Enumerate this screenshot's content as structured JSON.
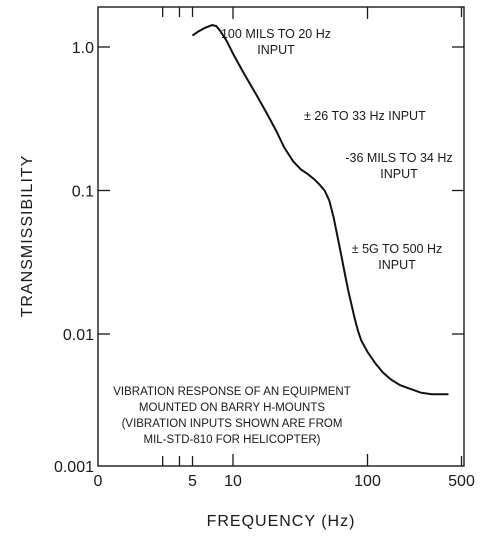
{
  "chart_data": {
    "type": "line",
    "x_scale": "log",
    "y_scale": "log",
    "xlabel": "FREQUENCY (Hz)",
    "ylabel": "TRANSMISSIBILITY",
    "xlim": [
      2,
      500
    ],
    "ylim": [
      0.001,
      2
    ],
    "x_tick_labels": [
      "0",
      "5",
      "10",
      "100",
      "500"
    ],
    "y_tick_labels": [
      "1.0",
      "0.1",
      "0.01",
      "0.001"
    ],
    "grid": false,
    "series": [
      {
        "x": [
          5,
          5.5,
          6.2,
          7,
          7.5,
          8,
          9,
          10,
          12,
          15,
          18,
          21,
          24,
          28,
          32,
          36,
          40,
          44,
          48,
          52,
          56,
          60,
          64,
          68,
          72,
          76,
          80,
          85,
          90,
          100,
          115,
          130,
          150,
          175,
          200,
          250,
          300,
          350,
          400
        ],
        "y": [
          1.2,
          1.28,
          1.36,
          1.42,
          1.4,
          1.3,
          1.1,
          0.9,
          0.66,
          0.46,
          0.34,
          0.26,
          0.2,
          0.16,
          0.14,
          0.13,
          0.12,
          0.11,
          0.1,
          0.085,
          0.065,
          0.047,
          0.035,
          0.026,
          0.02,
          0.016,
          0.013,
          0.0105,
          0.009,
          0.0075,
          0.0062,
          0.0054,
          0.0048,
          0.0044,
          0.0042,
          0.0039,
          0.0038,
          0.0038,
          0.0038
        ]
      }
    ],
    "annotations": [
      {
        "lines": [
          "100 MILS TO 20 Hz",
          "INPUT"
        ]
      },
      {
        "lines": [
          "± 26 TO 33 Hz INPUT"
        ]
      },
      {
        "lines": [
          "-36 MILS TO 34 Hz",
          "INPUT"
        ]
      },
      {
        "lines": [
          "± 5G TO 500 Hz",
          "INPUT"
        ]
      }
    ],
    "note": [
      "VIBRATION RESPONSE OF AN EQUIPMENT",
      "MOUNTED ON BARRY H-MOUNTS",
      "(VIBRATION INPUTS SHOWN ARE FROM",
      "MIL-STD-810 FOR HELICOPTER)"
    ]
  }
}
